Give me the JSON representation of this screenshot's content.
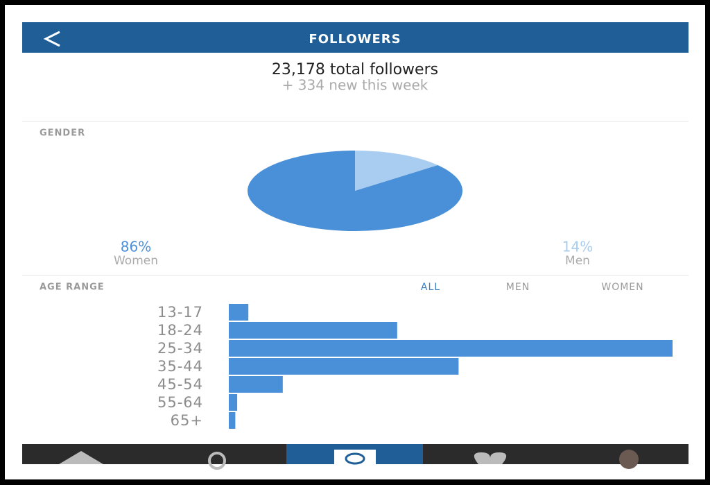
{
  "header": {
    "title": "FOLLOWERS"
  },
  "summary": {
    "total": "23,178 total followers",
    "new": "+ 334 new this week"
  },
  "tabs": [
    "ALL",
    "MEN",
    "WOMEN"
  ],
  "chart_data": [
    {
      "type": "pie",
      "title": "GENDER",
      "categories": [
        "Women",
        "Men"
      ],
      "values": [
        86,
        14
      ],
      "value_labels": [
        "86%",
        "14%"
      ],
      "colors": [
        "#4a90d9",
        "#a9cdf0"
      ]
    },
    {
      "type": "bar",
      "title": "AGE RANGE",
      "categories": [
        "13-17",
        "18-24",
        "25-34",
        "35-44",
        "45-54",
        "55-64",
        "65+"
      ],
      "values": [
        2.1,
        18.1,
        47.7,
        24.7,
        5.8,
        0.9,
        0.7
      ],
      "color": "#4a90d9"
    }
  ]
}
